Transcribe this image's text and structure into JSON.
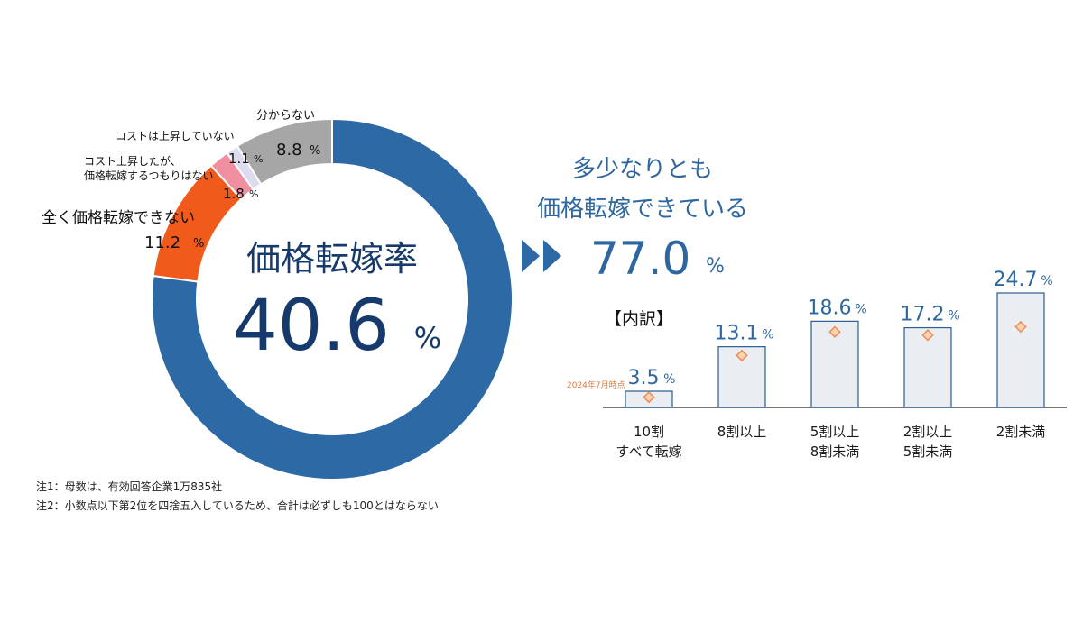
{
  "colors": {
    "blue": "#2c69a5",
    "navy": "#163a6b",
    "orange": "#f05a1a",
    "pink": "#ef8fa0",
    "lilac": "#dcdcee",
    "gray": "#a6a6a6",
    "bar_fill": "#eaeef2",
    "bar_border": "#2a5d92",
    "marker": "#ef8a4e",
    "label_blue": "#2e67a0"
  },
  "chart_data": [
    {
      "type": "pie",
      "variant": "donut",
      "center_title": "価格転嫁率",
      "center_value": "40.6",
      "center_unit": "%",
      "slices": [
        {
          "key": "transferred",
          "value": 77.0
        },
        {
          "key": "none",
          "label": "全く価格転嫁できない",
          "value": 11.2,
          "value_text": "11.2",
          "unit": "%",
          "color": "#f05a1a"
        },
        {
          "key": "cost_up_no_intent",
          "label_lines": [
            "コスト上昇したが、",
            "価格転嫁するつもりはない"
          ],
          "value": 1.8,
          "value_text": "1.8",
          "unit": "%",
          "color": "#ef8fa0"
        },
        {
          "key": "cost_not_up",
          "label": "コストは上昇していない",
          "value": 1.1,
          "value_text": "1.1",
          "unit": "%",
          "color": "#dcdcee"
        },
        {
          "key": "unknown",
          "label": "分からない",
          "value": 8.8,
          "value_text": "8.8",
          "unit": "%",
          "color": "#a6a6a6"
        }
      ]
    },
    {
      "type": "bar",
      "header_lines": [
        "多少なりとも",
        "価格転嫁できている"
      ],
      "total_value": "77.0",
      "total_unit": "%",
      "inner_title": "【内訳】",
      "marker_label": "2024年7月時点",
      "categories": [
        "10割\nすべて転嫁",
        "8割以上",
        "5割以上\n8割未満",
        "2割以上\n5割未満",
        "2割未満"
      ],
      "values": [
        3.5,
        13.1,
        18.6,
        17.2,
        24.7
      ],
      "value_labels": [
        "3.5",
        "13.1",
        "18.6",
        "17.2",
        "24.7"
      ],
      "unit": "%",
      "marker_values": [
        2.2,
        11.2,
        16.3,
        15.6,
        17.4
      ],
      "ylim": [
        0,
        25
      ]
    }
  ],
  "notes": [
    "注1：母数は、有効回答企業1万835社",
    "注2：小数点以下第2位を四捨五入しているため、合計は必ずしも100とはならない"
  ]
}
